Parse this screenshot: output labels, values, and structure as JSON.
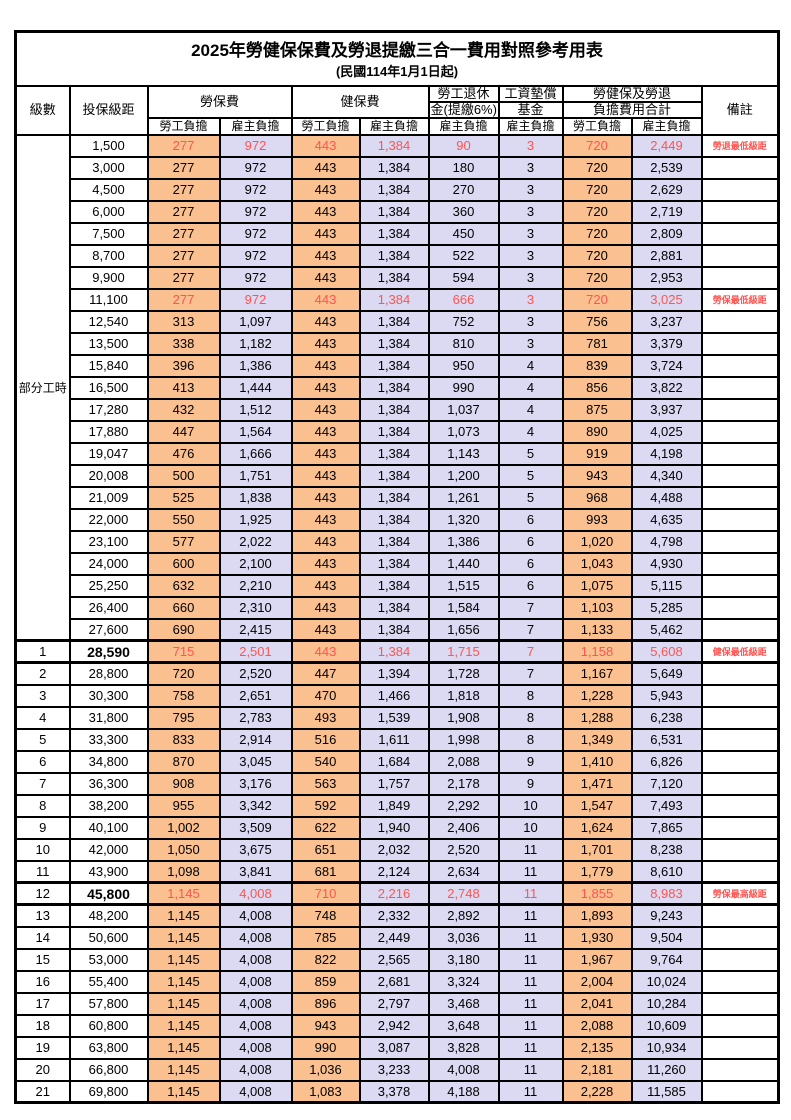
{
  "title": "2025年勞健保保費及勞退提繳三合一費用對照參考用表",
  "subtitle": "(民國114年1月1日起)",
  "colors": {
    "employee_col_bg": "#FAC090",
    "employer_col_bg": "#DCD9F2",
    "highlight_text": "#FF5450",
    "border": "#000000"
  },
  "header": {
    "level": "級數",
    "bracket": "投保級距",
    "labor_fee": "勞保費",
    "health_fee": "健保費",
    "pension_l1": "勞工退休",
    "pension_l2": "金(提繳6%)",
    "wage_fund_l1": "工資墊償",
    "wage_fund_l2": "基金",
    "total_l1": "勞健保及勞退",
    "total_l2": "負擔費用合計",
    "remark": "備註",
    "employee_share": "勞工負擔",
    "employer_share": "雇主負擔"
  },
  "part_time_label": "部分工時",
  "part_time_row_count": 23,
  "rows": [
    {
      "level": "",
      "bracket": "1,500",
      "cells": [
        "277",
        "972",
        "443",
        "1,384",
        "90",
        "3",
        "720",
        "2,449"
      ],
      "remark": "勞退最低級距",
      "highlight": true
    },
    {
      "level": "",
      "bracket": "3,000",
      "cells": [
        "277",
        "972",
        "443",
        "1,384",
        "180",
        "3",
        "720",
        "2,539"
      ],
      "remark": ""
    },
    {
      "level": "",
      "bracket": "4,500",
      "cells": [
        "277",
        "972",
        "443",
        "1,384",
        "270",
        "3",
        "720",
        "2,629"
      ],
      "remark": ""
    },
    {
      "level": "",
      "bracket": "6,000",
      "cells": [
        "277",
        "972",
        "443",
        "1,384",
        "360",
        "3",
        "720",
        "2,719"
      ],
      "remark": ""
    },
    {
      "level": "",
      "bracket": "7,500",
      "cells": [
        "277",
        "972",
        "443",
        "1,384",
        "450",
        "3",
        "720",
        "2,809"
      ],
      "remark": ""
    },
    {
      "level": "",
      "bracket": "8,700",
      "cells": [
        "277",
        "972",
        "443",
        "1,384",
        "522",
        "3",
        "720",
        "2,881"
      ],
      "remark": ""
    },
    {
      "level": "",
      "bracket": "9,900",
      "cells": [
        "277",
        "972",
        "443",
        "1,384",
        "594",
        "3",
        "720",
        "2,953"
      ],
      "remark": ""
    },
    {
      "level": "",
      "bracket": "11,100",
      "cells": [
        "277",
        "972",
        "443",
        "1,384",
        "666",
        "3",
        "720",
        "3,025"
      ],
      "remark": "勞保最低級距",
      "highlight": true
    },
    {
      "level": "",
      "bracket": "12,540",
      "cells": [
        "313",
        "1,097",
        "443",
        "1,384",
        "752",
        "3",
        "756",
        "3,237"
      ],
      "remark": ""
    },
    {
      "level": "",
      "bracket": "13,500",
      "cells": [
        "338",
        "1,182",
        "443",
        "1,384",
        "810",
        "3",
        "781",
        "3,379"
      ],
      "remark": ""
    },
    {
      "level": "",
      "bracket": "15,840",
      "cells": [
        "396",
        "1,386",
        "443",
        "1,384",
        "950",
        "4",
        "839",
        "3,724"
      ],
      "remark": ""
    },
    {
      "level": "",
      "bracket": "16,500",
      "cells": [
        "413",
        "1,444",
        "443",
        "1,384",
        "990",
        "4",
        "856",
        "3,822"
      ],
      "remark": ""
    },
    {
      "level": "",
      "bracket": "17,280",
      "cells": [
        "432",
        "1,512",
        "443",
        "1,384",
        "1,037",
        "4",
        "875",
        "3,937"
      ],
      "remark": ""
    },
    {
      "level": "",
      "bracket": "17,880",
      "cells": [
        "447",
        "1,564",
        "443",
        "1,384",
        "1,073",
        "4",
        "890",
        "4,025"
      ],
      "remark": ""
    },
    {
      "level": "",
      "bracket": "19,047",
      "cells": [
        "476",
        "1,666",
        "443",
        "1,384",
        "1,143",
        "5",
        "919",
        "4,198"
      ],
      "remark": ""
    },
    {
      "level": "",
      "bracket": "20,008",
      "cells": [
        "500",
        "1,751",
        "443",
        "1,384",
        "1,200",
        "5",
        "943",
        "4,340"
      ],
      "remark": ""
    },
    {
      "level": "",
      "bracket": "21,009",
      "cells": [
        "525",
        "1,838",
        "443",
        "1,384",
        "1,261",
        "5",
        "968",
        "4,488"
      ],
      "remark": ""
    },
    {
      "level": "",
      "bracket": "22,000",
      "cells": [
        "550",
        "1,925",
        "443",
        "1,384",
        "1,320",
        "6",
        "993",
        "4,635"
      ],
      "remark": ""
    },
    {
      "level": "",
      "bracket": "23,100",
      "cells": [
        "577",
        "2,022",
        "443",
        "1,384",
        "1,386",
        "6",
        "1,020",
        "4,798"
      ],
      "remark": ""
    },
    {
      "level": "",
      "bracket": "24,000",
      "cells": [
        "600",
        "2,100",
        "443",
        "1,384",
        "1,440",
        "6",
        "1,043",
        "4,930"
      ],
      "remark": ""
    },
    {
      "level": "",
      "bracket": "25,250",
      "cells": [
        "632",
        "2,210",
        "443",
        "1,384",
        "1,515",
        "6",
        "1,075",
        "5,115"
      ],
      "remark": ""
    },
    {
      "level": "",
      "bracket": "26,400",
      "cells": [
        "660",
        "2,310",
        "443",
        "1,384",
        "1,584",
        "7",
        "1,103",
        "5,285"
      ],
      "remark": ""
    },
    {
      "level": "",
      "bracket": "27,600",
      "cells": [
        "690",
        "2,415",
        "443",
        "1,384",
        "1,656",
        "7",
        "1,133",
        "5,462"
      ],
      "remark": ""
    },
    {
      "level": "1",
      "bracket": "28,590",
      "cells": [
        "715",
        "2,501",
        "443",
        "1,384",
        "1,715",
        "7",
        "1,158",
        "5,608"
      ],
      "remark": "健保最低級距",
      "highlight": true,
      "bold_bracket": true,
      "thick": true
    },
    {
      "level": "2",
      "bracket": "28,800",
      "cells": [
        "720",
        "2,520",
        "447",
        "1,394",
        "1,728",
        "7",
        "1,167",
        "5,649"
      ],
      "remark": ""
    },
    {
      "level": "3",
      "bracket": "30,300",
      "cells": [
        "758",
        "2,651",
        "470",
        "1,466",
        "1,818",
        "8",
        "1,228",
        "5,943"
      ],
      "remark": ""
    },
    {
      "level": "4",
      "bracket": "31,800",
      "cells": [
        "795",
        "2,783",
        "493",
        "1,539",
        "1,908",
        "8",
        "1,288",
        "6,238"
      ],
      "remark": ""
    },
    {
      "level": "5",
      "bracket": "33,300",
      "cells": [
        "833",
        "2,914",
        "516",
        "1,611",
        "1,998",
        "8",
        "1,349",
        "6,531"
      ],
      "remark": ""
    },
    {
      "level": "6",
      "bracket": "34,800",
      "cells": [
        "870",
        "3,045",
        "540",
        "1,684",
        "2,088",
        "9",
        "1,410",
        "6,826"
      ],
      "remark": ""
    },
    {
      "level": "7",
      "bracket": "36,300",
      "cells": [
        "908",
        "3,176",
        "563",
        "1,757",
        "2,178",
        "9",
        "1,471",
        "7,120"
      ],
      "remark": ""
    },
    {
      "level": "8",
      "bracket": "38,200",
      "cells": [
        "955",
        "3,342",
        "592",
        "1,849",
        "2,292",
        "10",
        "1,547",
        "7,493"
      ],
      "remark": ""
    },
    {
      "level": "9",
      "bracket": "40,100",
      "cells": [
        "1,002",
        "3,509",
        "622",
        "1,940",
        "2,406",
        "10",
        "1,624",
        "7,865"
      ],
      "remark": ""
    },
    {
      "level": "10",
      "bracket": "42,000",
      "cells": [
        "1,050",
        "3,675",
        "651",
        "2,032",
        "2,520",
        "11",
        "1,701",
        "8,238"
      ],
      "remark": ""
    },
    {
      "level": "11",
      "bracket": "43,900",
      "cells": [
        "1,098",
        "3,841",
        "681",
        "2,124",
        "2,634",
        "11",
        "1,779",
        "8,610"
      ],
      "remark": ""
    },
    {
      "level": "12",
      "bracket": "45,800",
      "cells": [
        "1,145",
        "4,008",
        "710",
        "2,216",
        "2,748",
        "11",
        "1,855",
        "8,983"
      ],
      "remark": "勞保最高級距",
      "highlight": true,
      "bold_bracket": true,
      "thick": true
    },
    {
      "level": "13",
      "bracket": "48,200",
      "cells": [
        "1,145",
        "4,008",
        "748",
        "2,332",
        "2,892",
        "11",
        "1,893",
        "9,243"
      ],
      "remark": ""
    },
    {
      "level": "14",
      "bracket": "50,600",
      "cells": [
        "1,145",
        "4,008",
        "785",
        "2,449",
        "3,036",
        "11",
        "1,930",
        "9,504"
      ],
      "remark": ""
    },
    {
      "level": "15",
      "bracket": "53,000",
      "cells": [
        "1,145",
        "4,008",
        "822",
        "2,565",
        "3,180",
        "11",
        "1,967",
        "9,764"
      ],
      "remark": ""
    },
    {
      "level": "16",
      "bracket": "55,400",
      "cells": [
        "1,145",
        "4,008",
        "859",
        "2,681",
        "3,324",
        "11",
        "2,004",
        "10,024"
      ],
      "remark": ""
    },
    {
      "level": "17",
      "bracket": "57,800",
      "cells": [
        "1,145",
        "4,008",
        "896",
        "2,797",
        "3,468",
        "11",
        "2,041",
        "10,284"
      ],
      "remark": ""
    },
    {
      "level": "18",
      "bracket": "60,800",
      "cells": [
        "1,145",
        "4,008",
        "943",
        "2,942",
        "3,648",
        "11",
        "2,088",
        "10,609"
      ],
      "remark": ""
    },
    {
      "level": "19",
      "bracket": "63,800",
      "cells": [
        "1,145",
        "4,008",
        "990",
        "3,087",
        "3,828",
        "11",
        "2,135",
        "10,934"
      ],
      "remark": ""
    },
    {
      "level": "20",
      "bracket": "66,800",
      "cells": [
        "1,145",
        "4,008",
        "1,036",
        "3,233",
        "4,008",
        "11",
        "2,181",
        "11,260"
      ],
      "remark": ""
    },
    {
      "level": "21",
      "bracket": "69,800",
      "cells": [
        "1,145",
        "4,008",
        "1,083",
        "3,378",
        "4,188",
        "11",
        "2,228",
        "11,585"
      ],
      "remark": ""
    }
  ]
}
